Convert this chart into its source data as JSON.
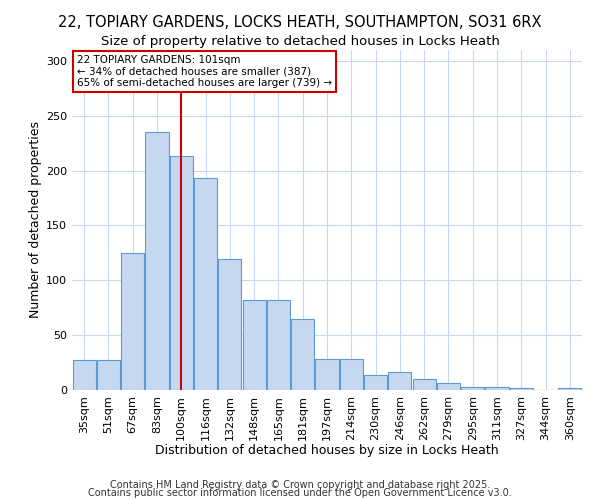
{
  "title_line1": "22, TOPIARY GARDENS, LOCKS HEATH, SOUTHAMPTON, SO31 6RX",
  "title_line2": "Size of property relative to detached houses in Locks Heath",
  "xlabel": "Distribution of detached houses by size in Locks Heath",
  "ylabel": "Number of detached properties",
  "categories": [
    "35sqm",
    "51sqm",
    "67sqm",
    "83sqm",
    "100sqm",
    "116sqm",
    "132sqm",
    "148sqm",
    "165sqm",
    "181sqm",
    "197sqm",
    "214sqm",
    "230sqm",
    "246sqm",
    "262sqm",
    "279sqm",
    "295sqm",
    "311sqm",
    "327sqm",
    "344sqm",
    "360sqm"
  ],
  "values": [
    27,
    27,
    125,
    235,
    213,
    193,
    119,
    82,
    82,
    65,
    28,
    28,
    14,
    16,
    10,
    6,
    3,
    3,
    2,
    0,
    2
  ],
  "bar_color": "#c5d8f0",
  "bar_edge_color": "#5b9bd5",
  "vline_x": 4,
  "vline_color": "#cc0000",
  "annotation_text": "22 TOPIARY GARDENS: 101sqm\n← 34% of detached houses are smaller (387)\n65% of semi-detached houses are larger (739) →",
  "annotation_box_color": "#ffffff",
  "annotation_box_edge": "#cc0000",
  "ylim": [
    0,
    310
  ],
  "yticks": [
    0,
    50,
    100,
    150,
    200,
    250,
    300
  ],
  "footnote1": "Contains HM Land Registry data © Crown copyright and database right 2025.",
  "footnote2": "Contains public sector information licensed under the Open Government Licence v3.0.",
  "plot_bg_color": "#ffffff",
  "fig_bg_color": "#ffffff",
  "grid_color": "#c8d8ee",
  "title_fontsize": 10.5,
  "subtitle_fontsize": 9.5,
  "axis_label_fontsize": 9,
  "tick_fontsize": 8,
  "footnote_fontsize": 7
}
